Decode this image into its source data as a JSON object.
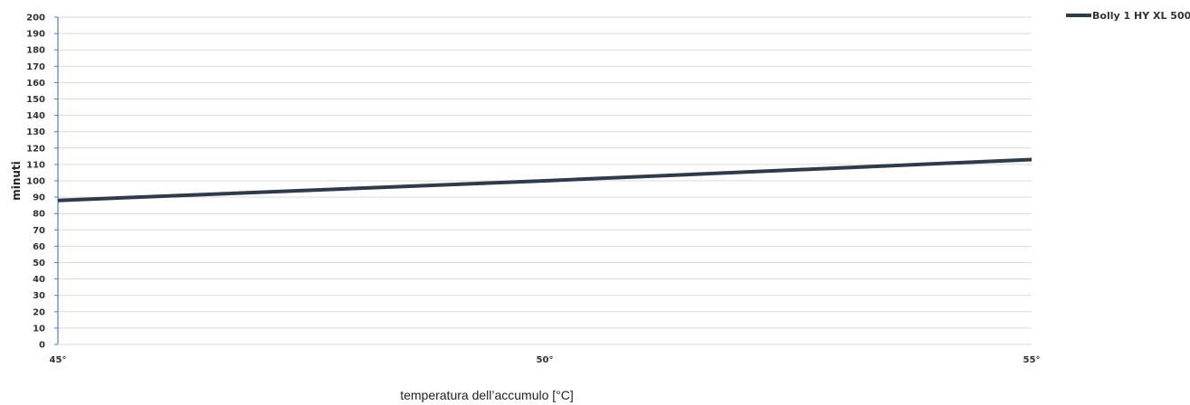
{
  "chart_data": {
    "type": "line",
    "title": "",
    "xlabel": "temperatura dell’accumulo [°C]",
    "ylabel": "minuti",
    "categories": [
      "45°",
      "50°",
      "55°"
    ],
    "x": [
      45,
      50,
      55
    ],
    "xlim": [
      45,
      55
    ],
    "ylim": [
      0,
      200
    ],
    "y_ticks": [
      "0",
      "10",
      "20",
      "30",
      "40",
      "50",
      "60",
      "70",
      "80",
      "90",
      "100",
      "110",
      "120",
      "130",
      "140",
      "150",
      "160",
      "170",
      "180",
      "190",
      "200"
    ],
    "grid": true,
    "legend_position": "top-right",
    "series": [
      {
        "name": "Bolly 1 HY XL 500",
        "values": [
          88,
          100,
          113
        ],
        "color": "#2f3a4a"
      }
    ],
    "axis_color": "#4a7fd4"
  }
}
